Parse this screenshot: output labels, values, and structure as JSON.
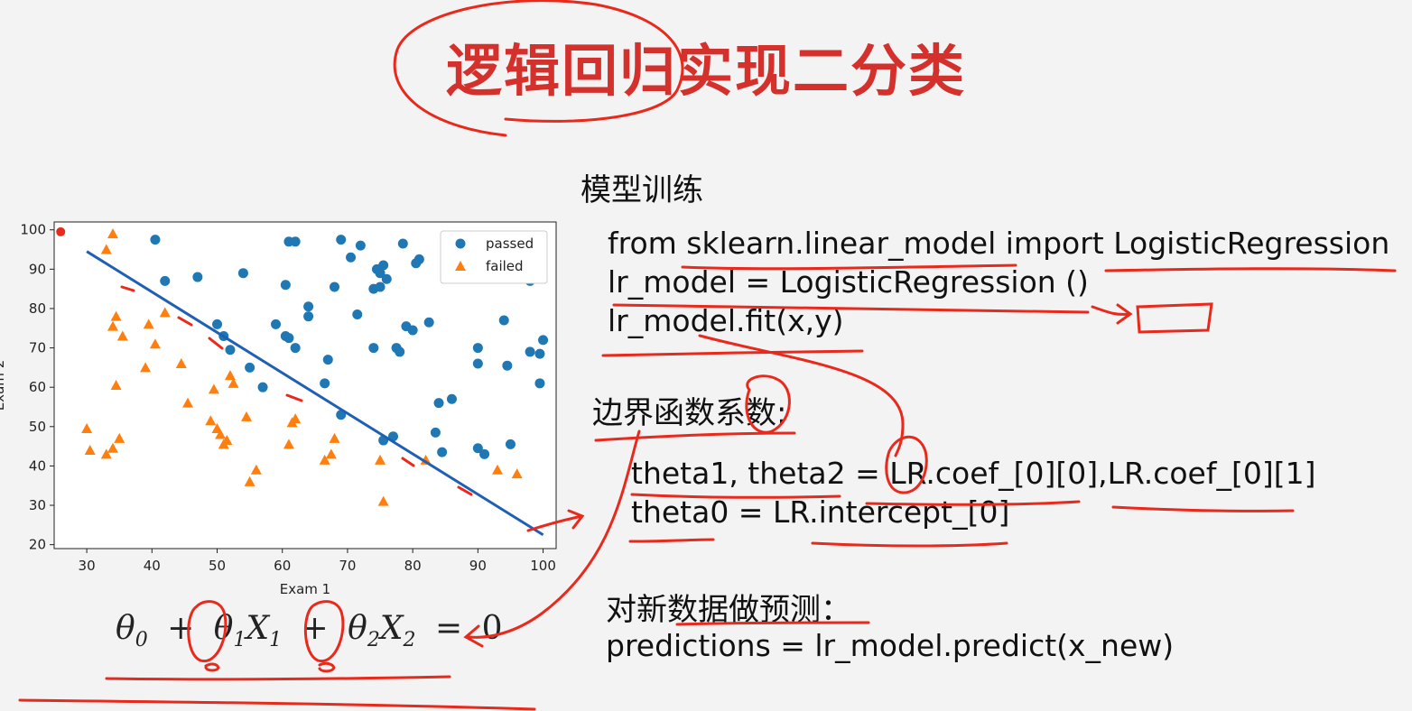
{
  "title": "逻辑回归实现二分类",
  "sections": {
    "training": {
      "heading": "模型训练",
      "lines": [
        "from sklearn.linear_model import LogisticRegression",
        "lr_model = LogisticRegression ()",
        "lr_model.fit(x,y)"
      ]
    },
    "boundary": {
      "heading": "边界函数系数:",
      "lines": [
        "theta1, theta2 = LR.coef_[0][0],LR.coef_[0][1]",
        "theta0 = LR.intercept_[0]"
      ]
    },
    "predict": {
      "heading": "对新数据做预测：",
      "line": "predictions = lr_model.predict(x_new)"
    }
  },
  "formula": {
    "t0": "θ",
    "s0": "0",
    "plus1": "+",
    "t1": "θ",
    "s1": "1",
    "x1": "X",
    "xs1": "1",
    "plus2": "+",
    "t2": "θ",
    "s2": "2",
    "x2": "X",
    "xs2": "2",
    "eq": "=",
    "rhs": "0"
  },
  "chart_data": {
    "type": "scatter",
    "xlabel": "Exam 1",
    "ylabel": "Exam 2",
    "xlim": [
      25,
      102
    ],
    "ylim": [
      19,
      102
    ],
    "xticks": [
      30,
      40,
      50,
      60,
      70,
      80,
      90,
      100
    ],
    "yticks": [
      20,
      30,
      40,
      50,
      60,
      70,
      80,
      90,
      100
    ],
    "legend_position": "top-right",
    "series": [
      {
        "name": "passed",
        "marker": "circle",
        "color": "#1f77b4",
        "points": [
          [
            40.5,
            97.5
          ],
          [
            42,
            87
          ],
          [
            47,
            88
          ],
          [
            54,
            89
          ],
          [
            50,
            76
          ],
          [
            51,
            73
          ],
          [
            52,
            69.5
          ],
          [
            55,
            65
          ],
          [
            57,
            60
          ],
          [
            59,
            76
          ],
          [
            60.5,
            73
          ],
          [
            61,
            72.5
          ],
          [
            62,
            70
          ],
          [
            60.5,
            86
          ],
          [
            61,
            97
          ],
          [
            62,
            97
          ],
          [
            64,
            80.5
          ],
          [
            64,
            78
          ],
          [
            67,
            67
          ],
          [
            66.5,
            61
          ],
          [
            68,
            85.5
          ],
          [
            69,
            97.5
          ],
          [
            69,
            53
          ],
          [
            70.5,
            93
          ],
          [
            72,
            96
          ],
          [
            71.5,
            78.5
          ],
          [
            74,
            85
          ],
          [
            74.5,
            90
          ],
          [
            75,
            85.5
          ],
          [
            75,
            89
          ],
          [
            75.5,
            91
          ],
          [
            76,
            87.5
          ],
          [
            74,
            70
          ],
          [
            77.5,
            70
          ],
          [
            78,
            69
          ],
          [
            78.5,
            96.5
          ],
          [
            79,
            75.5
          ],
          [
            80,
            74.5
          ],
          [
            81,
            92.5
          ],
          [
            80.5,
            91.5
          ],
          [
            82.5,
            76.5
          ],
          [
            77,
            47.5
          ],
          [
            75.5,
            46.5
          ],
          [
            83.5,
            48.5
          ],
          [
            84,
            56
          ],
          [
            86,
            57
          ],
          [
            84.5,
            43.5
          ],
          [
            90,
            44.5
          ],
          [
            91,
            43
          ],
          [
            90,
            70
          ],
          [
            90,
            66
          ],
          [
            91,
            88
          ],
          [
            92,
            89.5
          ],
          [
            94,
            77
          ],
          [
            94.5,
            65.5
          ],
          [
            95,
            45.5
          ],
          [
            98,
            87
          ],
          [
            98,
            69
          ],
          [
            99.5,
            68.5
          ],
          [
            100,
            72
          ],
          [
            99.5,
            61
          ]
        ]
      },
      {
        "name": "failed",
        "marker": "triangle",
        "color": "#ff7f0e",
        "points": [
          [
            33,
            95
          ],
          [
            34,
            99
          ],
          [
            34.5,
            78
          ],
          [
            34,
            75.5
          ],
          [
            35.5,
            73
          ],
          [
            34.5,
            60.5
          ],
          [
            30,
            49.5
          ],
          [
            30.5,
            44
          ],
          [
            33,
            43
          ],
          [
            34,
            44.5
          ],
          [
            35,
            47
          ],
          [
            39,
            65
          ],
          [
            39.5,
            76
          ],
          [
            40.5,
            71
          ],
          [
            42,
            79
          ],
          [
            44.5,
            66
          ],
          [
            45.5,
            56
          ],
          [
            49,
            51.5
          ],
          [
            49.5,
            59.5
          ],
          [
            50,
            49.5
          ],
          [
            50.5,
            48
          ],
          [
            51,
            45.5
          ],
          [
            51.5,
            46.5
          ],
          [
            52,
            63
          ],
          [
            52.5,
            61
          ],
          [
            54.5,
            52.5
          ],
          [
            55,
            36
          ],
          [
            56,
            39
          ],
          [
            61.5,
            51
          ],
          [
            62,
            52
          ],
          [
            61,
            45.5
          ],
          [
            66.5,
            41.5
          ],
          [
            67.5,
            43
          ],
          [
            68,
            47
          ],
          [
            75,
            41.5
          ],
          [
            75.5,
            31
          ],
          [
            82,
            41.5
          ],
          [
            93,
            39
          ],
          [
            96,
            38
          ]
        ]
      },
      {
        "name": "decision boundary",
        "type": "line",
        "color": "#1f5fb4",
        "x": [
          30,
          100
        ],
        "y": [
          94.5,
          22.5
        ]
      }
    ]
  }
}
